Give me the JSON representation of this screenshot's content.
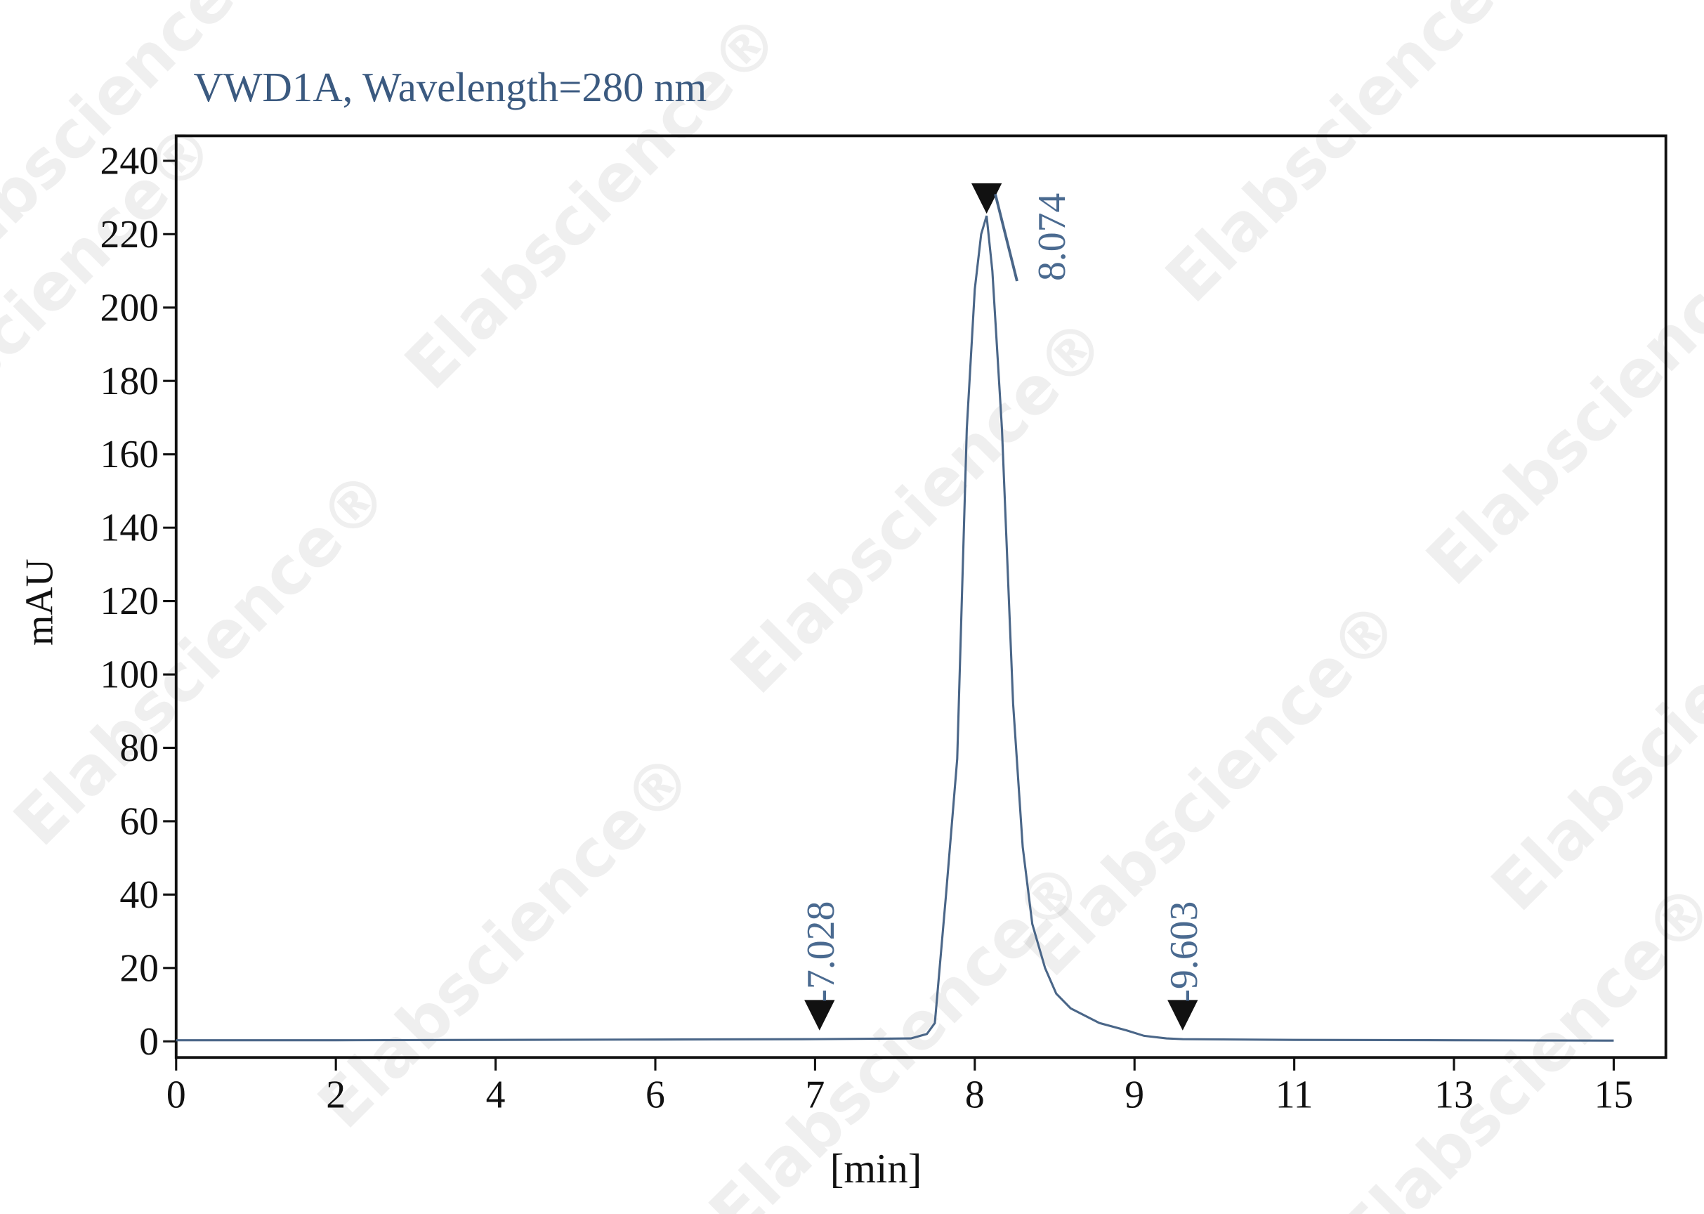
{
  "chart_data": {
    "type": "line",
    "title": "VWD1A, Wavelength=280 nm",
    "y_label": "mAU",
    "x_label": "[min]",
    "watermark": "Elabscience®",
    "color": "#4a6688",
    "ylim": [
      -4.4,
      246.8
    ],
    "yticks": [
      0,
      20,
      40,
      60,
      80,
      100,
      120,
      140,
      160,
      180,
      200,
      220,
      240
    ],
    "xlim": [
      0,
      15
    ],
    "xticks": [
      0,
      2,
      4,
      6,
      7,
      8,
      9,
      11,
      13,
      15
    ],
    "x": [
      0,
      2,
      4,
      6,
      7,
      7.6,
      7.7,
      7.75,
      7.82,
      7.89,
      7.95,
      8.0,
      8.04,
      8.074,
      8.11,
      8.17,
      8.24,
      8.3,
      8.36,
      8.44,
      8.51,
      8.6,
      8.78,
      8.95,
      9.12,
      9.4,
      9.603,
      11,
      13,
      15
    ],
    "y": [
      0.3,
      0.3,
      0.4,
      0.5,
      0.6,
      0.8,
      2,
      5,
      40,
      77,
      167,
      205,
      220,
      225,
      210,
      167,
      92,
      53,
      32,
      20,
      13,
      9,
      5,
      3,
      1.5,
      0.8,
      0.6,
      0.4,
      0.3,
      0.2
    ],
    "peaks": [
      {
        "x": 7.028,
        "y": 0.6,
        "label": "-7.028"
      },
      {
        "x": 8.074,
        "y": 225,
        "label": "8.074"
      },
      {
        "x": 9.603,
        "y": 0.6,
        "label": "-9.603"
      }
    ]
  }
}
